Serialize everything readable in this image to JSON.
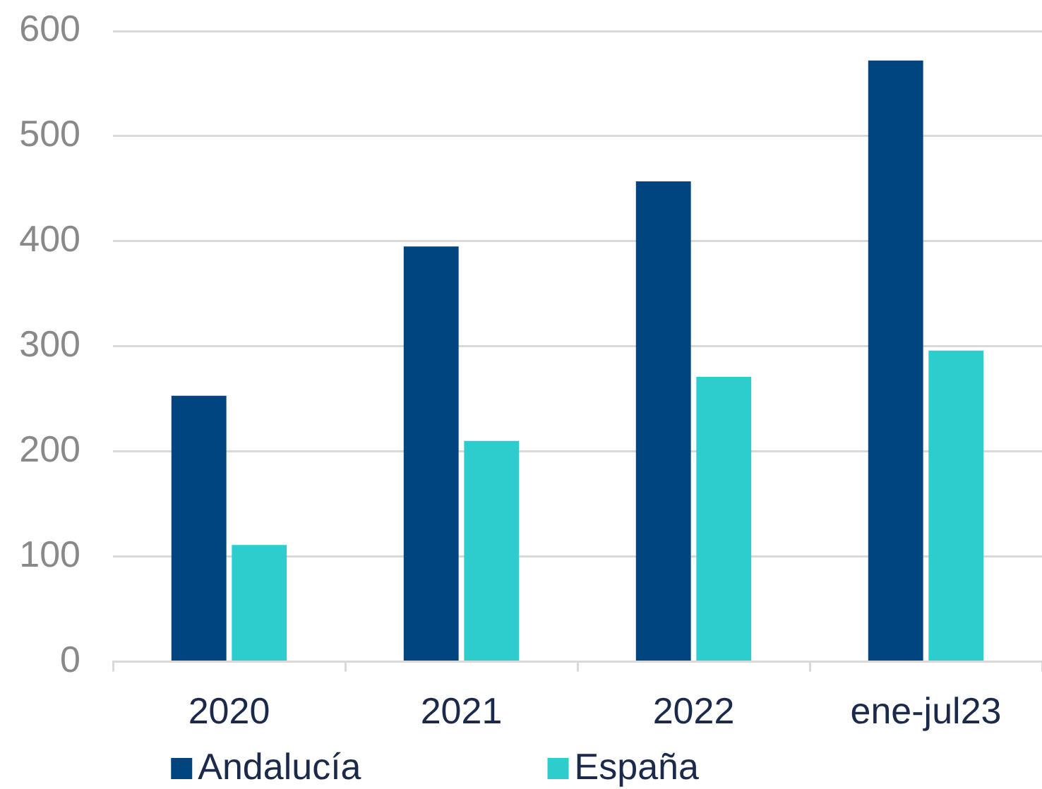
{
  "chart_data": {
    "type": "bar",
    "categories": [
      "2020",
      "2021",
      "2022",
      "ene-jul23"
    ],
    "series": [
      {
        "name": "Andalucía",
        "color": "#00457f",
        "values": [
          253,
          395,
          457,
          572
        ]
      },
      {
        "name": "España",
        "color": "#2dcdcd",
        "values": [
          111,
          210,
          271,
          296
        ]
      }
    ],
    "ylim": [
      0,
      600
    ],
    "yticks": [
      0,
      100,
      200,
      300,
      400,
      500,
      600
    ],
    "grid": "y",
    "legend": "bottom"
  }
}
